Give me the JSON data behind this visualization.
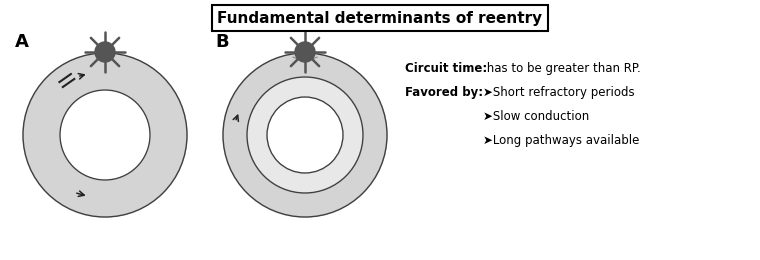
{
  "title": "Fundamental determinants of reentry",
  "title_fontsize": 11,
  "label_A": "A",
  "label_B": "B",
  "bg_color": "#ffffff",
  "ring_color": "#d4d4d4",
  "ring_edge_color": "#404040",
  "ring_edge_lw": 1.0,
  "sun_color": "#555555",
  "text_circuit_bold": "Circuit time:",
  "text_circuit_normal": " has to be greater than RP.",
  "text_favored_bold": "Favored by:",
  "bullet1": "➤Short refractory periods",
  "bullet2": "➤Slow conduction",
  "bullet3": "➤Long pathways available"
}
